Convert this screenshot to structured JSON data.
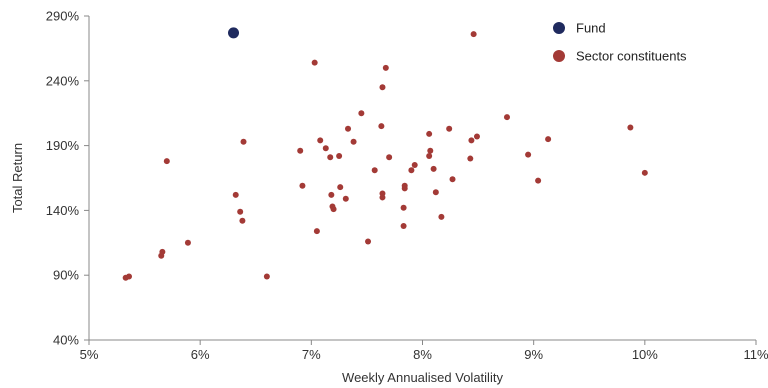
{
  "chart_data": {
    "type": "scatter",
    "xlabel": "Weekly Annualised Volatility",
    "ylabel": "Total Return",
    "xlim": [
      5,
      11
    ],
    "ylim": [
      40,
      290
    ],
    "x_ticks": [
      5,
      6,
      7,
      8,
      9,
      10,
      11
    ],
    "y_ticks": [
      40,
      90,
      140,
      190,
      240,
      290
    ],
    "x_tick_labels": [
      "5%",
      "6%",
      "7%",
      "8%",
      "9%",
      "10%",
      "11%"
    ],
    "y_tick_labels": [
      "40%",
      "90%",
      "140%",
      "190%",
      "240%",
      "290%"
    ],
    "grid": false,
    "legend_position": "top-right",
    "series": [
      {
        "name": "Fund",
        "color": "#1f2a5e",
        "points": [
          {
            "x": 6.3,
            "y": 277
          }
        ]
      },
      {
        "name": "Sector constituents",
        "color": "#a33a36",
        "points": [
          {
            "x": 5.33,
            "y": 88
          },
          {
            "x": 5.36,
            "y": 89
          },
          {
            "x": 5.65,
            "y": 105
          },
          {
            "x": 5.66,
            "y": 108
          },
          {
            "x": 5.7,
            "y": 178
          },
          {
            "x": 5.89,
            "y": 115
          },
          {
            "x": 6.32,
            "y": 152
          },
          {
            "x": 6.36,
            "y": 139
          },
          {
            "x": 6.38,
            "y": 132
          },
          {
            "x": 6.39,
            "y": 193
          },
          {
            "x": 6.6,
            "y": 89
          },
          {
            "x": 6.9,
            "y": 186
          },
          {
            "x": 6.92,
            "y": 159
          },
          {
            "x": 7.03,
            "y": 254
          },
          {
            "x": 7.05,
            "y": 124
          },
          {
            "x": 7.08,
            "y": 194
          },
          {
            "x": 7.13,
            "y": 188
          },
          {
            "x": 7.17,
            "y": 181
          },
          {
            "x": 7.18,
            "y": 152
          },
          {
            "x": 7.19,
            "y": 143
          },
          {
            "x": 7.2,
            "y": 141
          },
          {
            "x": 7.25,
            "y": 182
          },
          {
            "x": 7.26,
            "y": 158
          },
          {
            "x": 7.31,
            "y": 149
          },
          {
            "x": 7.33,
            "y": 203
          },
          {
            "x": 7.38,
            "y": 193
          },
          {
            "x": 7.45,
            "y": 215
          },
          {
            "x": 7.51,
            "y": 116
          },
          {
            "x": 7.57,
            "y": 171
          },
          {
            "x": 7.63,
            "y": 205
          },
          {
            "x": 7.64,
            "y": 235
          },
          {
            "x": 7.64,
            "y": 150
          },
          {
            "x": 7.64,
            "y": 153
          },
          {
            "x": 7.67,
            "y": 250
          },
          {
            "x": 7.7,
            "y": 181
          },
          {
            "x": 7.83,
            "y": 142
          },
          {
            "x": 7.83,
            "y": 128
          },
          {
            "x": 7.84,
            "y": 157
          },
          {
            "x": 7.84,
            "y": 159
          },
          {
            "x": 7.9,
            "y": 171
          },
          {
            "x": 7.93,
            "y": 175
          },
          {
            "x": 8.06,
            "y": 199
          },
          {
            "x": 8.06,
            "y": 182
          },
          {
            "x": 8.07,
            "y": 186
          },
          {
            "x": 8.1,
            "y": 172
          },
          {
            "x": 8.12,
            "y": 154
          },
          {
            "x": 8.17,
            "y": 135
          },
          {
            "x": 8.24,
            "y": 203
          },
          {
            "x": 8.27,
            "y": 164
          },
          {
            "x": 8.43,
            "y": 180
          },
          {
            "x": 8.44,
            "y": 194
          },
          {
            "x": 8.46,
            "y": 276
          },
          {
            "x": 8.49,
            "y": 197
          },
          {
            "x": 8.76,
            "y": 212
          },
          {
            "x": 8.95,
            "y": 183
          },
          {
            "x": 9.04,
            "y": 163
          },
          {
            "x": 9.13,
            "y": 195
          },
          {
            "x": 9.87,
            "y": 204
          },
          {
            "x": 10.0,
            "y": 169
          }
        ]
      }
    ]
  }
}
